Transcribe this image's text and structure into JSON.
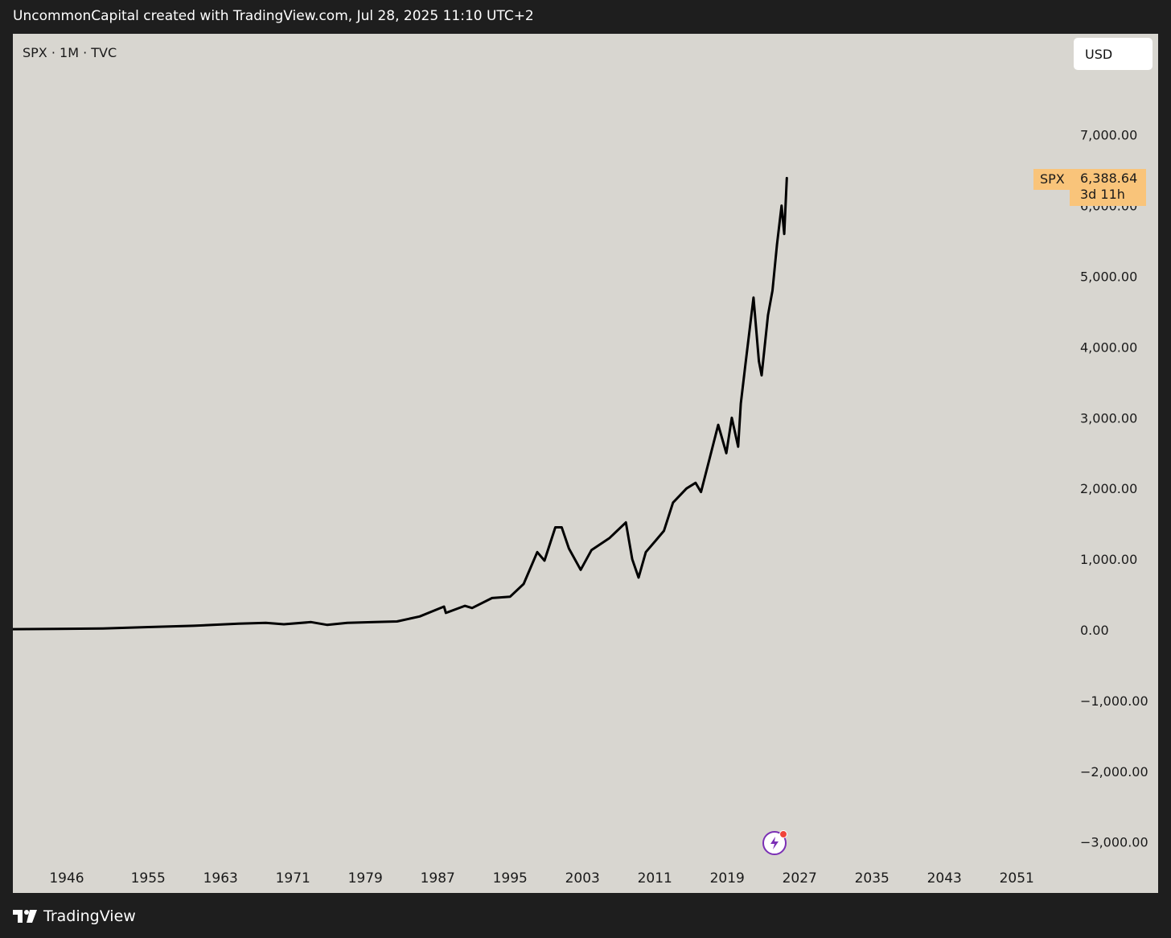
{
  "caption": "UncommonCapital created with TradingView.com, Jul 28, 2025 11:10 UTC+2",
  "symbol_info": "SPX · 1M · TVC",
  "currency": "USD",
  "price_badge": {
    "symbol": "SPX",
    "price": "6,388.64",
    "countdown": "3d 11h",
    "color": "#f9c47a"
  },
  "brand": "TradingView",
  "icons": {
    "alert": "lightning-bolt-icon",
    "logo": "tradingview-logo-icon"
  },
  "colors": {
    "background": "#1e1e1e",
    "chart_background": "#d8d6d0",
    "line": "#000000",
    "accent_purple": "#7b2fb5"
  },
  "chart_data": {
    "type": "line",
    "title": "",
    "xlabel": "",
    "ylabel": "",
    "x_ticks": [
      "1946",
      "1955",
      "1963",
      "1971",
      "1979",
      "1987",
      "1995",
      "2003",
      "2011",
      "2019",
      "2027",
      "2035",
      "2043",
      "2051"
    ],
    "y_ticks": [
      "7,000.00",
      "6,000.00",
      "5,000.00",
      "4,000.00",
      "3,000.00",
      "2,000.00",
      "1,000.00",
      "0.00",
      "−1,000.00",
      "−2,000.00",
      "−3,000.00"
    ],
    "y_tick_values": [
      7000,
      6000,
      5000,
      4000,
      3000,
      2000,
      1000,
      0,
      -1000,
      -2000,
      -3000
    ],
    "xlim": [
      1939.5,
      2066
    ],
    "ylim": [
      -3300,
      8200
    ],
    "grid": false,
    "series": [
      {
        "name": "SPX",
        "x": [
          1939.6,
          1945,
          1950,
          1955,
          1960,
          1965,
          1968,
          1970,
          1973,
          1974.8,
          1977,
          1980,
          1982.5,
          1985,
          1987.7,
          1987.9,
          1990,
          1990.8,
          1993,
          1995,
          1996.5,
          1998,
          1998.8,
          2000,
          2000.7,
          2001.5,
          2002.8,
          2004,
          2006,
          2007.8,
          2008.5,
          2009.2,
          2010,
          2011,
          2012,
          2013,
          2014.5,
          2015.5,
          2016.1,
          2017,
          2018,
          2018.9,
          2019.5,
          2020.2,
          2020.5,
          2021,
          2021.9,
          2022.5,
          2022.8,
          2023.5,
          2024,
          2024.5,
          2025.0,
          2025.3,
          2025.58
        ],
        "y": [
          10,
          15,
          20,
          40,
          58,
          88,
          100,
          80,
          110,
          70,
          100,
          110,
          120,
          190,
          330,
          240,
          340,
          310,
          450,
          470,
          650,
          1100,
          980,
          1450,
          1450,
          1150,
          850,
          1130,
          1300,
          1520,
          1000,
          740,
          1100,
          1250,
          1400,
          1800,
          2000,
          2080,
          1950,
          2400,
          2900,
          2500,
          3000,
          2590,
          3200,
          3750,
          4700,
          3800,
          3600,
          4450,
          4800,
          5450,
          6000,
          5600,
          6388.64
        ]
      }
    ]
  }
}
